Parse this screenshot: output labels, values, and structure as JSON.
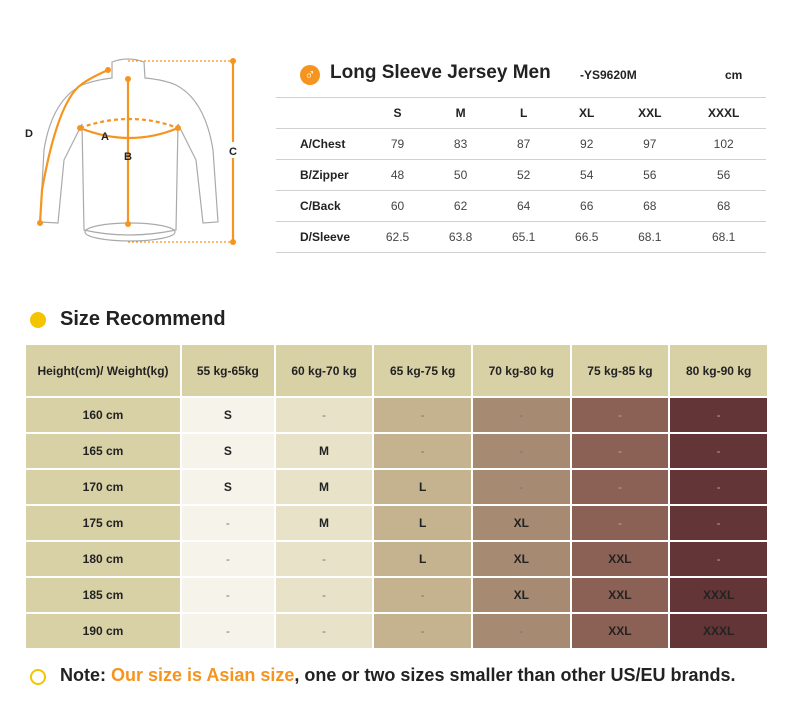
{
  "diagram": {
    "labels": {
      "a": "A",
      "b": "B",
      "c": "C",
      "d": "D"
    },
    "accent": "#f5941f"
  },
  "header": {
    "icon": "male-icon",
    "title": "Long Sleeve Jersey Men",
    "code": "-YS9620M",
    "unit": "cm"
  },
  "spec": {
    "sizes": [
      "S",
      "M",
      "L",
      "XL",
      "XXL",
      "XXXL"
    ],
    "rows": [
      {
        "label": "A/Chest",
        "values": [
          "79",
          "83",
          "87",
          "92",
          "97",
          "102"
        ]
      },
      {
        "label": "B/Zipper",
        "values": [
          "48",
          "50",
          "52",
          "54",
          "56",
          "56"
        ]
      },
      {
        "label": "C/Back",
        "values": [
          "60",
          "62",
          "64",
          "66",
          "68",
          "68"
        ]
      },
      {
        "label": "D/Sleeve",
        "values": [
          "62.5",
          "63.8",
          "65.1",
          "66.5",
          "68.1",
          "68.1"
        ]
      }
    ]
  },
  "recommend": {
    "title": "Size Recommend",
    "corner": "Height(cm)/ Weight(kg)",
    "weights": [
      "55 kg-65kg",
      "60 kg-70 kg",
      "65 kg-75 kg",
      "70 kg-80 kg",
      "75 kg-85 kg",
      "80 kg-90 kg"
    ],
    "rows": [
      {
        "height": "160 cm",
        "values": [
          "S",
          "-",
          "-",
          "-",
          "-",
          "-"
        ]
      },
      {
        "height": "165 cm",
        "values": [
          "S",
          "M",
          "-",
          "-",
          "-",
          "-"
        ]
      },
      {
        "height": "170 cm",
        "values": [
          "S",
          "M",
          "L",
          "-",
          "-",
          "-"
        ]
      },
      {
        "height": "175 cm",
        "values": [
          "-",
          "M",
          "L",
          "XL",
          "-",
          "-"
        ]
      },
      {
        "height": "180 cm",
        "values": [
          "-",
          "-",
          "L",
          "XL",
          "XXL",
          "-"
        ]
      },
      {
        "height": "185 cm",
        "values": [
          "-",
          "-",
          "-",
          "XL",
          "XXL",
          "XXXL"
        ]
      },
      {
        "height": "190 cm",
        "values": [
          "-",
          "-",
          "-",
          "-",
          "XXL",
          "XXXL"
        ]
      }
    ],
    "colors": [
      "#f5f3ea",
      "#e8e3c8",
      "#c5b28f",
      "#a68a72",
      "#8a6154",
      "#643537"
    ]
  },
  "note": {
    "prefix": "Note: ",
    "highlight": "Our size is Asian size",
    "rest": ", one or two sizes smaller than other US/EU brands."
  }
}
